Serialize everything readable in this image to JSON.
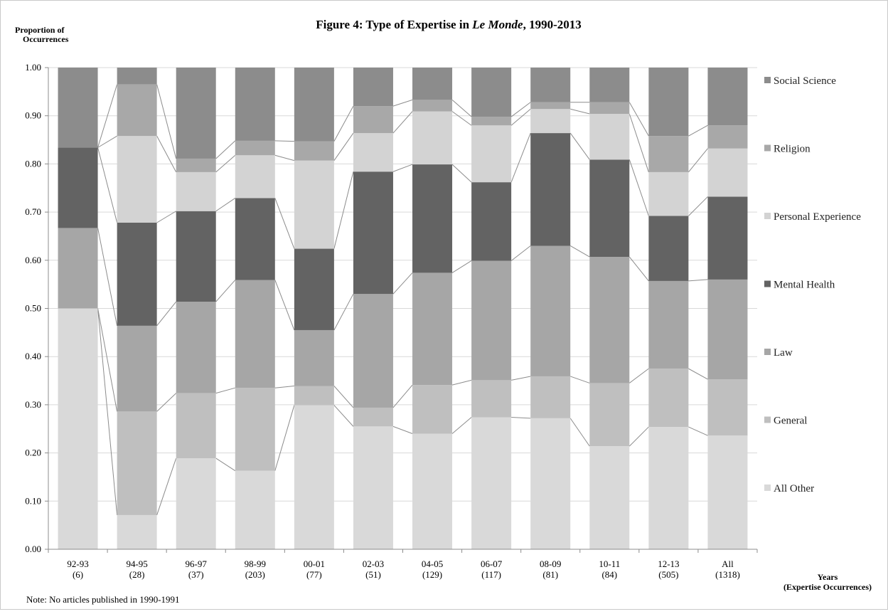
{
  "chart_data": {
    "type": "bar",
    "stacked": true,
    "title_prefix": "Figure 4: Type of Expertise in ",
    "title_italic": "Le Monde",
    "title_suffix": ", 1990-2013",
    "ylabel_line1": "Proportion  of",
    "ylabel_line2": "Occurrences",
    "xlabel_line1": "Years",
    "xlabel_line2": "(Expertise Occurrences)",
    "note": "Note: No articles published in 1990-1991",
    "ylim": [
      0,
      1
    ],
    "ytick_labels": [
      "0.00",
      "0.10",
      "0.20",
      "0.30",
      "0.40",
      "0.50",
      "0.60",
      "0.70",
      "0.80",
      "0.90",
      "1.00"
    ],
    "legend_position": "right",
    "categories": [
      {
        "years": "92-93",
        "count": "(6)"
      },
      {
        "years": "94-95",
        "count": "(28)"
      },
      {
        "years": "96-97",
        "count": "(37)"
      },
      {
        "years": "98-99",
        "count": "(203)"
      },
      {
        "years": "00-01",
        "count": "(77)"
      },
      {
        "years": "02-03",
        "count": "(51)"
      },
      {
        "years": "04-05",
        "count": "(129)"
      },
      {
        "years": "06-07",
        "count": "(117)"
      },
      {
        "years": "08-09",
        "count": "(81)"
      },
      {
        "years": "10-11",
        "count": "(84)"
      },
      {
        "years": "12-13",
        "count": "(505)"
      },
      {
        "years": "All",
        "count": "(1318)"
      }
    ],
    "series": [
      {
        "name": "All Other",
        "color": "#d9d9d9",
        "values": [
          0.5,
          0.071,
          0.189,
          0.163,
          0.299,
          0.255,
          0.24,
          0.274,
          0.272,
          0.214,
          0.254,
          0.236
        ]
      },
      {
        "name": "General",
        "color": "#bfbfbf",
        "values": [
          0.0,
          0.215,
          0.135,
          0.172,
          0.04,
          0.039,
          0.101,
          0.077,
          0.087,
          0.131,
          0.121,
          0.117
        ]
      },
      {
        "name": "Law",
        "color": "#a6a6a6",
        "values": [
          0.167,
          0.178,
          0.19,
          0.224,
          0.116,
          0.236,
          0.233,
          0.248,
          0.271,
          0.262,
          0.182,
          0.207
        ]
      },
      {
        "name": "Mental Health",
        "color": "#636363",
        "values": [
          0.167,
          0.214,
          0.188,
          0.17,
          0.169,
          0.254,
          0.225,
          0.163,
          0.234,
          0.202,
          0.135,
          0.172
        ]
      },
      {
        "name": "Personal Experience",
        "color": "#d3d3d3",
        "values": [
          0.0,
          0.18,
          0.081,
          0.089,
          0.183,
          0.08,
          0.11,
          0.118,
          0.05,
          0.095,
          0.091,
          0.1
        ]
      },
      {
        "name": "Religion",
        "color": "#a8a8a8",
        "values": [
          0.0,
          0.107,
          0.028,
          0.03,
          0.04,
          0.056,
          0.024,
          0.018,
          0.014,
          0.024,
          0.075,
          0.048
        ]
      },
      {
        "name": "Social Science",
        "color": "#8c8c8c",
        "values": [
          0.166,
          0.035,
          0.189,
          0.152,
          0.153,
          0.08,
          0.067,
          0.102,
          0.072,
          0.072,
          0.142,
          0.12
        ]
      }
    ]
  }
}
